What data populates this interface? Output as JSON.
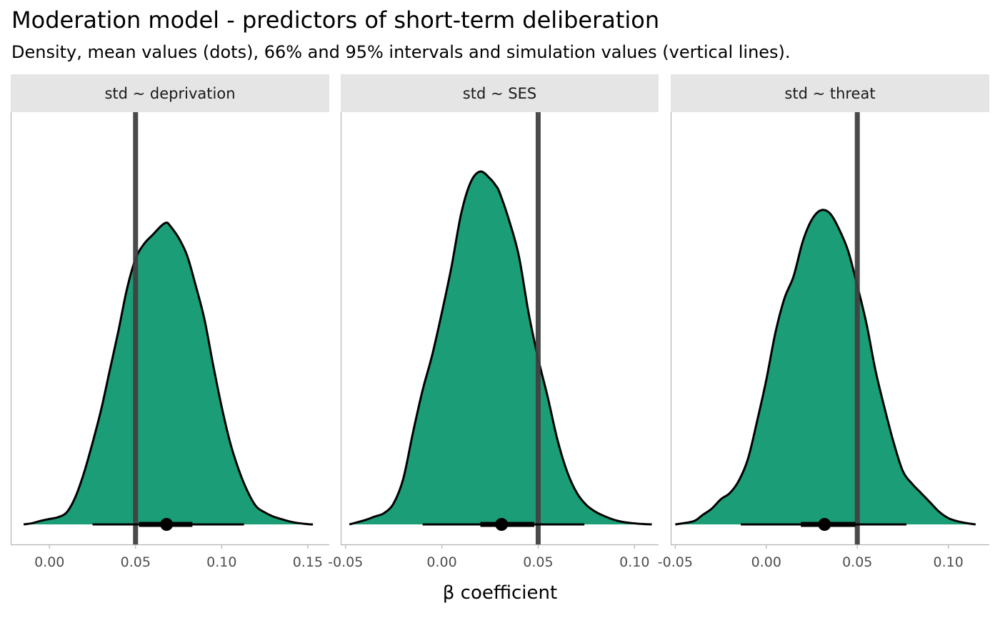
{
  "title": "Moderation model - predictors of short-term deliberation",
  "subtitle": "Density, mean values (dots), 66% and 95% intervals and simulation values (vertical lines).",
  "colors": {
    "density_fill": "#1b9e77",
    "density_stroke": "#000000",
    "reference_line": "#404040",
    "strip_bg": "#e5e5e5",
    "axis_line": "#b3b3b3"
  },
  "chart_data": {
    "type": "area",
    "xlabel": "β coefficient",
    "ylabel": "",
    "grid": false,
    "facets": [
      {
        "label": "std ~ deprivation",
        "xlim": [
          -0.0225,
          0.1625
        ],
        "ticks": [
          0.0,
          0.05,
          0.1,
          0.15
        ],
        "tick_labels": [
          "0.00",
          "0.05",
          "0.10",
          "0.15"
        ],
        "reference_value": 0.05,
        "mean": 0.068,
        "interval_66": [
          0.052,
          0.083
        ],
        "interval_95": [
          0.025,
          0.113
        ],
        "density": {
          "x": [
            -0.015,
            -0.01,
            -0.005,
            0.0,
            0.005,
            0.01,
            0.015,
            0.02,
            0.025,
            0.03,
            0.035,
            0.04,
            0.045,
            0.05,
            0.055,
            0.06,
            0.065,
            0.068,
            0.07,
            0.075,
            0.08,
            0.085,
            0.09,
            0.095,
            0.1,
            0.105,
            0.11,
            0.115,
            0.12,
            0.125,
            0.13,
            0.135,
            0.14,
            0.145,
            0.15,
            0.153
          ],
          "y": [
            0.0,
            0.004,
            0.012,
            0.018,
            0.024,
            0.04,
            0.09,
            0.17,
            0.27,
            0.38,
            0.51,
            0.64,
            0.78,
            0.88,
            0.93,
            0.96,
            0.99,
            1.0,
            0.99,
            0.95,
            0.89,
            0.79,
            0.68,
            0.53,
            0.39,
            0.27,
            0.18,
            0.11,
            0.06,
            0.04,
            0.026,
            0.017,
            0.009,
            0.004,
            0.001,
            0.0
          ]
        }
      },
      {
        "label": "std ~ SES",
        "xlim": [
          -0.0525,
          0.1125
        ],
        "ticks": [
          -0.05,
          0.0,
          0.05,
          0.1
        ],
        "tick_labels": [
          "-0.05",
          "0.00",
          "0.05",
          "0.10"
        ],
        "reference_value": 0.05,
        "mean": 0.031,
        "interval_66": [
          0.02,
          0.048
        ],
        "interval_95": [
          -0.01,
          0.074
        ],
        "density": {
          "x": [
            -0.048,
            -0.04,
            -0.035,
            -0.03,
            -0.025,
            -0.02,
            -0.015,
            -0.01,
            -0.005,
            0.0,
            0.005,
            0.01,
            0.015,
            0.02,
            0.025,
            0.028,
            0.03,
            0.035,
            0.04,
            0.045,
            0.05,
            0.055,
            0.06,
            0.065,
            0.07,
            0.075,
            0.08,
            0.085,
            0.09,
            0.095,
            0.1,
            0.105,
            0.109
          ],
          "y": [
            0.0,
            0.012,
            0.022,
            0.032,
            0.06,
            0.13,
            0.26,
            0.38,
            0.48,
            0.6,
            0.73,
            0.88,
            0.97,
            1.0,
            0.98,
            0.96,
            0.94,
            0.86,
            0.76,
            0.6,
            0.47,
            0.36,
            0.24,
            0.15,
            0.09,
            0.055,
            0.035,
            0.022,
            0.012,
            0.006,
            0.003,
            0.001,
            0.0
          ]
        }
      },
      {
        "label": "std ~ threat",
        "xlim": [
          -0.0525,
          0.1225
        ],
        "ticks": [
          -0.05,
          0.0,
          0.05,
          0.1
        ],
        "tick_labels": [
          "-0.05",
          "0.00",
          "0.05",
          "0.10"
        ],
        "reference_value": 0.05,
        "mean": 0.032,
        "interval_66": [
          0.019,
          0.049
        ],
        "interval_95": [
          -0.014,
          0.077
        ],
        "density": {
          "x": [
            -0.05,
            -0.04,
            -0.035,
            -0.03,
            -0.025,
            -0.02,
            -0.015,
            -0.01,
            -0.005,
            0.0,
            0.005,
            0.01,
            0.015,
            0.02,
            0.025,
            0.03,
            0.035,
            0.04,
            0.045,
            0.05,
            0.055,
            0.06,
            0.065,
            0.07,
            0.075,
            0.08,
            0.085,
            0.09,
            0.095,
            0.1,
            0.105,
            0.11,
            0.115
          ],
          "y": [
            0.0,
            0.01,
            0.03,
            0.05,
            0.08,
            0.1,
            0.14,
            0.21,
            0.33,
            0.46,
            0.61,
            0.72,
            0.79,
            0.9,
            0.97,
            1.0,
            0.99,
            0.94,
            0.87,
            0.76,
            0.64,
            0.49,
            0.37,
            0.26,
            0.17,
            0.13,
            0.1,
            0.07,
            0.04,
            0.02,
            0.01,
            0.004,
            0.0
          ]
        }
      }
    ]
  }
}
